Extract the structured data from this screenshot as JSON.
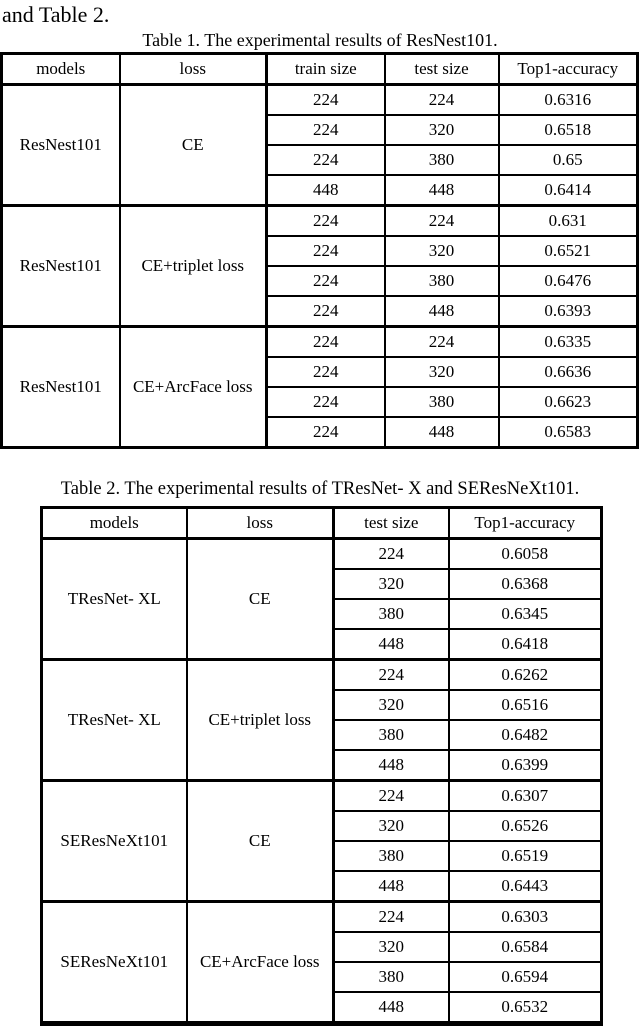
{
  "page": {
    "intro_text": "and Table 2.",
    "colors": {
      "ink": "#000000",
      "background": "#ffffff"
    }
  },
  "tables": [
    {
      "caption": "Table 1. The experimental results of ResNest101.",
      "columns": [
        "models",
        "loss",
        "train size",
        "test size",
        "Top1-accuracy"
      ],
      "groups": [
        {
          "model": "ResNest101",
          "loss": "CE",
          "rows": [
            [
              "224",
              "224",
              "0.6316"
            ],
            [
              "224",
              "320",
              "0.6518"
            ],
            [
              "224",
              "380",
              "0.65"
            ],
            [
              "448",
              "448",
              "0.6414"
            ]
          ]
        },
        {
          "model": "ResNest101",
          "loss": "CE+triplet loss",
          "rows": [
            [
              "224",
              "224",
              "0.631"
            ],
            [
              "224",
              "320",
              "0.6521"
            ],
            [
              "224",
              "380",
              "0.6476"
            ],
            [
              "224",
              "448",
              "0.6393"
            ]
          ]
        },
        {
          "model": "ResNest101",
          "loss": "CE+ArcFace loss",
          "rows": [
            [
              "224",
              "224",
              "0.6335"
            ],
            [
              "224",
              "320",
              "0.6636"
            ],
            [
              "224",
              "380",
              "0.6623"
            ],
            [
              "224",
              "448",
              "0.6583"
            ]
          ]
        }
      ]
    },
    {
      "caption": "Table 2. The experimental results of TResNet- X and SEResNeXt101.",
      "columns": [
        "models",
        "loss",
        "test size",
        "Top1-accuracy"
      ],
      "groups": [
        {
          "model": "TResNet- XL",
          "loss": "CE",
          "rows": [
            [
              "224",
              "0.6058"
            ],
            [
              "320",
              "0.6368"
            ],
            [
              "380",
              "0.6345"
            ],
            [
              "448",
              "0.6418"
            ]
          ]
        },
        {
          "model": "TResNet- XL",
          "loss": "CE+triplet loss",
          "rows": [
            [
              "224",
              "0.6262"
            ],
            [
              "320",
              "0.6516"
            ],
            [
              "380",
              "0.6482"
            ],
            [
              "448",
              "0.6399"
            ]
          ]
        },
        {
          "model": "SEResNeXt101",
          "loss": "CE",
          "rows": [
            [
              "224",
              "0.6307"
            ],
            [
              "320",
              "0.6526"
            ],
            [
              "380",
              "0.6519"
            ],
            [
              "448",
              "0.6443"
            ]
          ]
        },
        {
          "model": "SEResNeXt101",
          "loss": "CE+ArcFace loss",
          "rows": [
            [
              "224",
              "0.6303"
            ],
            [
              "320",
              "0.6584"
            ],
            [
              "380",
              "0.6594"
            ],
            [
              "448",
              "0.6532"
            ]
          ]
        }
      ]
    }
  ]
}
